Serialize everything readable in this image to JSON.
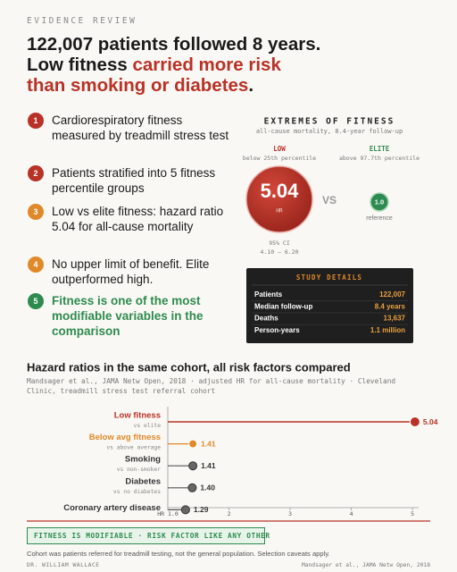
{
  "header": {
    "kicker": "EVIDENCE REVIEW",
    "title_segments": [
      "122,007 patients followed 8 years.",
      "Low fitness ",
      "carried more risk",
      "than smoking or diabetes",
      "."
    ]
  },
  "points": [
    {
      "number": "1",
      "text": "Cardiorespiratory fitness measured by treadmill stress test",
      "color": "#b83227"
    },
    {
      "number": "2",
      "text": "Patients stratified into 5 fitness percentile groups",
      "color": "#b83227"
    },
    {
      "number": "3",
      "text": "Low vs elite fitness: hazard ratio 5.04 for all-cause mortality",
      "color": "#e0892a"
    },
    {
      "number": "4",
      "text": "No upper limit of benefit. Elite outperformed high.",
      "color": "#e0892a"
    },
    {
      "number": "5",
      "text": "Fitness is one of the most modifiable variables in the comparison",
      "color": "#2e8b4f"
    }
  ],
  "extremes": {
    "title": "EXTREMES OF FITNESS",
    "subtitle": "all-cause mortality, 8.4-year follow-up",
    "low_label": "LOW",
    "low_sub": "below 25th percentile",
    "elite_label": "ELITE",
    "elite_sub": "above 97.7th percentile",
    "low_value": "5.04",
    "low_unit": "HR",
    "vs": "VS",
    "elite_value": "1.0",
    "elite_note": "reference",
    "ci_label": "95% CI",
    "ci_range": "4.10 – 6.20"
  },
  "study_details": {
    "title": "STUDY DETAILS",
    "rows": [
      [
        "Patients",
        "122,007"
      ],
      [
        "Median follow-up",
        "8.4 years"
      ],
      [
        "Deaths",
        "13,637"
      ],
      [
        "Person-years",
        "1.1 million"
      ]
    ]
  },
  "chart_data": {
    "type": "lollipop",
    "title": "Hazard ratios in the same cohort, all risk factors compared",
    "subtitle": "Mandsager et al., JAMA Netw Open, 2018 · adjusted HR for all-cause mortality · Cleveland Clinic, treadmill stress test referral cohort",
    "categories": [
      "Low fitness",
      "Below avg fitness",
      "Smoking",
      "Diabetes",
      "Coronary artery disease"
    ],
    "sublabels": [
      "vs elite",
      "vs above average",
      "vs non-smoker",
      "vs no diabetes",
      null
    ],
    "values": [
      5.04,
      1.41,
      1.41,
      1.4,
      1.29
    ],
    "value_labels": [
      "5.04",
      "1.41",
      "1.41",
      "1.40",
      "1.29"
    ],
    "colors": [
      "#b83227",
      "#e0892a",
      "#555555",
      "#555555",
      "#555555"
    ],
    "xlim": [
      1,
      5.1
    ],
    "xticks": [
      {
        "value": 1,
        "label": "HR 1.0"
      },
      2,
      3,
      4,
      5
    ]
  },
  "footer": {
    "banner": "FITNESS IS MODIFIABLE · RISK FACTOR LIKE ANY OTHER",
    "note": "Cohort was patients referred for treadmill testing, not the general population. Selection caveats apply.",
    "author": "DR. WILLIAM WALLACE",
    "source": "Mandsager et al., JAMA Netw Open, 2018"
  }
}
